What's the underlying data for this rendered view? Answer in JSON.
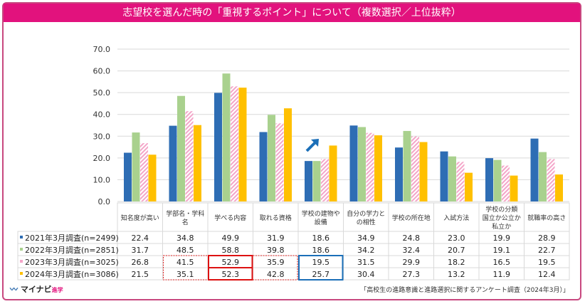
{
  "title": "志望校を選んだ時の「重視するポイント」について（複数選択／上位抜粋）",
  "source": "「高校生の進路意識と進路選択に関するアンケート調査（2024年3月）」",
  "logo": {
    "text": "マイナビ",
    "sub": "進学"
  },
  "chart_data": {
    "type": "bar",
    "ylim": [
      0,
      70
    ],
    "yticks": [
      "0.0",
      "10.0",
      "20.0",
      "30.0",
      "40.0",
      "50.0",
      "60.0",
      "70.0"
    ],
    "grid": true,
    "legend": "table-below",
    "categories": [
      "知名度が高い",
      "学部名・学科名",
      "学べる内容",
      "取れる資格",
      "学校の建物や設備",
      "自分の学力との相性",
      "学校の所在地",
      "入試方法",
      "学校の分類 国立か公立か私立か",
      "就職率の高さ"
    ],
    "category_lines": [
      [
        "知名度が高い"
      ],
      [
        "学部名・学科",
        "名"
      ],
      [
        "学べる内容"
      ],
      [
        "取れる資格"
      ],
      [
        "学校の建物や",
        "設備"
      ],
      [
        "自分の学力と",
        "の相性"
      ],
      [
        "学校の所在地"
      ],
      [
        "入試方法"
      ],
      [
        "学校の分類",
        "国立か公立か",
        "私立か"
      ],
      [
        "就職率の高さ"
      ]
    ],
    "series": [
      {
        "name": "2021年3月調査(n=2499)",
        "color": "#2e6db4",
        "values": [
          22.4,
          34.8,
          49.9,
          31.9,
          18.6,
          34.9,
          24.8,
          23.0,
          19.9,
          28.9
        ]
      },
      {
        "name": "2022年3月調査(n=2851)",
        "color": "#a9d18e",
        "values": [
          31.7,
          48.5,
          58.8,
          39.8,
          18.6,
          34.2,
          32.4,
          20.7,
          19.1,
          22.7
        ]
      },
      {
        "name": "2023年3月調査(n=3025)",
        "color": "#f4a6c9",
        "pattern": "hatched",
        "values": [
          26.8,
          41.5,
          52.9,
          35.9,
          19.5,
          31.5,
          29.9,
          18.2,
          16.5,
          19.5
        ]
      },
      {
        "name": "2024年3月調査(n=3086)",
        "color": "#ffc000",
        "values": [
          21.5,
          35.1,
          52.3,
          42.8,
          25.7,
          30.4,
          27.3,
          13.2,
          11.9,
          12.4
        ]
      }
    ],
    "annotations": [
      {
        "type": "arrow-up-right-icon",
        "color": "#1b6fb8",
        "category": "学校の建物や設備"
      }
    ]
  }
}
